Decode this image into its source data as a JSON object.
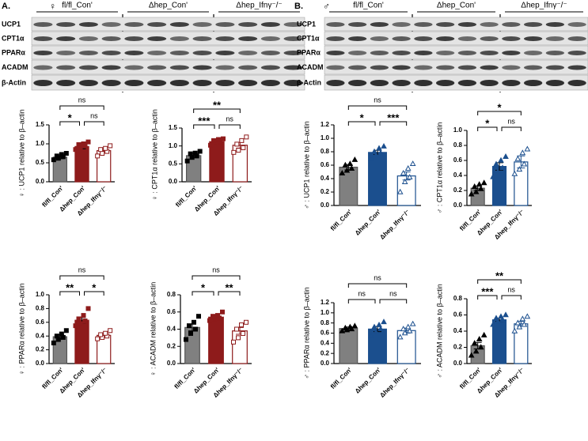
{
  "blots": [
    {
      "panel": "A.",
      "sex": "♀",
      "groups": [
        "fl/fl_Con'",
        "Δhep_Con'",
        "Δhep_Ifnγ⁻/⁻"
      ],
      "proteins": [
        "UCP1",
        "CPT1α",
        "PPARα",
        "ACADM",
        "β-Actin"
      ]
    },
    {
      "panel": "B.",
      "sex": "♂",
      "groups": [
        "fl/fl_Con'",
        "Δhep_Con'",
        "Δhep_Ifnγ⁻/⁻"
      ],
      "proteins": [
        "UCP1",
        "CPT1α",
        "PPARα",
        "ACADM",
        "β-Actin"
      ]
    }
  ],
  "chart_data": [
    {
      "type": "bar",
      "ylabel": "♀ : UCP1 relative to β–actin",
      "categories": [
        "fl/fl_Con'",
        "Δhep_Con'",
        "Δhep_Ifnγ⁻/⁻"
      ],
      "values": [
        0.65,
        0.93,
        0.82
      ],
      "errors": [
        0.04,
        0.06,
        0.05
      ],
      "points": [
        [
          0.58,
          0.62,
          0.66,
          0.68,
          0.72,
          0.75
        ],
        [
          0.85,
          0.9,
          0.95,
          0.98,
          1.0,
          1.05
        ],
        [
          0.68,
          0.75,
          0.8,
          0.85,
          0.88,
          0.95
        ]
      ],
      "colors": [
        "#808080",
        "#8e1b1b",
        "#ffffff"
      ],
      "edgecolors": [
        "#555555",
        "#8e1b1b",
        "#8e1b1b"
      ],
      "pointcolors": [
        "#000000",
        "#8e1b1b",
        "#8e1b1b"
      ],
      "marker": "square",
      "ylim": [
        0,
        1.5
      ],
      "yticks": [
        {
          "value": 0,
          "label": "0.0"
        },
        0.5,
        {
          "value": 1,
          "label": "1.0"
        },
        1.5
      ],
      "annotations": [
        "*",
        "ns",
        "ns"
      ]
    },
    {
      "type": "bar",
      "ylabel": "♀ : CPT1α relative to β–actin",
      "categories": [
        "fl/fl_Con'",
        "Δhep_Con'",
        "Δhep_Ifnγ⁻/⁻"
      ],
      "values": [
        0.73,
        1.12,
        1.02
      ],
      "errors": [
        0.05,
        0.04,
        0.08
      ],
      "points": [
        [
          0.58,
          0.68,
          0.72,
          0.78,
          0.8,
          0.85
        ],
        [
          1.02,
          1.1,
          1.12,
          1.15,
          1.18,
          1.2
        ],
        [
          0.82,
          0.88,
          0.95,
          1.05,
          1.15,
          1.25
        ]
      ],
      "colors": [
        "#808080",
        "#8e1b1b",
        "#ffffff"
      ],
      "edgecolors": [
        "#555555",
        "#8e1b1b",
        "#8e1b1b"
      ],
      "pointcolors": [
        "#000000",
        "#8e1b1b",
        "#8e1b1b"
      ],
      "marker": "square",
      "ylim": [
        0,
        1.5
      ],
      "yticks": [
        {
          "value": 0,
          "label": "0.0"
        },
        0.5,
        {
          "value": 1,
          "label": "1.0"
        },
        1.5
      ],
      "annotations": [
        "***",
        "ns",
        "**"
      ]
    },
    {
      "type": "bar",
      "ylabel": "♂ : UCP1 relative to β–actin",
      "categories": [
        "fl/fl_Con'",
        "Δhep_Con'",
        "Δhep_Ifnγ⁻/⁻"
      ],
      "values": [
        0.57,
        0.79,
        0.44
      ],
      "errors": [
        0.04,
        0.03,
        0.06
      ],
      "points": [
        [
          0.48,
          0.52,
          0.55,
          0.6,
          0.62,
          0.68
        ],
        [
          0.7,
          0.75,
          0.78,
          0.8,
          0.85,
          0.88
        ],
        [
          0.2,
          0.35,
          0.42,
          0.48,
          0.55,
          0.62
        ]
      ],
      "colors": [
        "#808080",
        "#1b4f8e",
        "#ffffff"
      ],
      "edgecolors": [
        "#555555",
        "#1b4f8e",
        "#1b4f8e"
      ],
      "pointcolors": [
        "#000000",
        "#1b4f8e",
        "#1b4f8e"
      ],
      "marker": "triangle",
      "ylim": [
        0,
        1.2
      ],
      "yticks": [
        {
          "value": 0,
          "label": "0.0"
        },
        0.2,
        0.4,
        0.6,
        0.8,
        {
          "value": 1,
          "label": "1.0"
        },
        1.2
      ],
      "annotations": [
        "*",
        "***",
        "ns"
      ]
    },
    {
      "type": "bar",
      "ylabel": "♂ : CPT1α relative to β–actin",
      "categories": [
        "fl/fl_Con'",
        "Δhep_Con'",
        "Δhep_Ifnγ⁻/⁻"
      ],
      "values": [
        0.23,
        0.52,
        0.58
      ],
      "errors": [
        0.03,
        0.05,
        0.08
      ],
      "points": [
        [
          0.15,
          0.18,
          0.22,
          0.25,
          0.28,
          0.3
        ],
        [
          0.38,
          0.45,
          0.5,
          0.55,
          0.6,
          0.65
        ],
        [
          0.42,
          0.48,
          0.55,
          0.62,
          0.7,
          0.75
        ]
      ],
      "colors": [
        "#808080",
        "#1b4f8e",
        "#ffffff"
      ],
      "edgecolors": [
        "#555555",
        "#1b4f8e",
        "#1b4f8e"
      ],
      "pointcolors": [
        "#000000",
        "#1b4f8e",
        "#1b4f8e"
      ],
      "marker": "triangle",
      "ylim": [
        0,
        1.0
      ],
      "yticks": [
        {
          "value": 0,
          "label": "0.0"
        },
        0.2,
        0.4,
        0.6,
        0.8,
        {
          "value": 1,
          "label": "1.0"
        }
      ],
      "annotations": [
        "*",
        "ns",
        "*"
      ]
    },
    {
      "type": "bar",
      "ylabel": "♀ : PPARα relative to β–actin",
      "categories": [
        "fl/fl_Con'",
        "Δhep_Con'",
        "Δhep_Ifnγ⁻/⁻"
      ],
      "values": [
        0.39,
        0.63,
        0.41
      ],
      "errors": [
        0.03,
        0.04,
        0.02
      ],
      "points": [
        [
          0.3,
          0.35,
          0.38,
          0.4,
          0.43,
          0.48
        ],
        [
          0.55,
          0.58,
          0.62,
          0.65,
          0.7,
          0.8
        ],
        [
          0.36,
          0.38,
          0.4,
          0.42,
          0.44,
          0.48
        ]
      ],
      "colors": [
        "#808080",
        "#8e1b1b",
        "#ffffff"
      ],
      "edgecolors": [
        "#555555",
        "#8e1b1b",
        "#8e1b1b"
      ],
      "pointcolors": [
        "#000000",
        "#8e1b1b",
        "#8e1b1b"
      ],
      "marker": "square",
      "ylim": [
        0,
        1.0
      ],
      "yticks": [
        {
          "value": 0,
          "label": "0.0"
        },
        0.2,
        0.4,
        0.6,
        0.8,
        {
          "value": 1,
          "label": "1.0"
        }
      ],
      "annotations": [
        "**",
        "*",
        "ns"
      ]
    },
    {
      "type": "bar",
      "ylabel": "♀ : ACADM relative to β–actin",
      "categories": [
        "fl/fl_Con'",
        "Δhep_Con'",
        "Δhep_Ifnγ⁻/⁻"
      ],
      "values": [
        0.42,
        0.54,
        0.38
      ],
      "errors": [
        0.04,
        0.02,
        0.04
      ],
      "points": [
        [
          0.28,
          0.35,
          0.4,
          0.44,
          0.48,
          0.55
        ],
        [
          0.5,
          0.52,
          0.53,
          0.55,
          0.56,
          0.6
        ],
        [
          0.25,
          0.3,
          0.35,
          0.4,
          0.45,
          0.48
        ]
      ],
      "colors": [
        "#808080",
        "#8e1b1b",
        "#ffffff"
      ],
      "edgecolors": [
        "#555555",
        "#8e1b1b",
        "#8e1b1b"
      ],
      "pointcolors": [
        "#000000",
        "#8e1b1b",
        "#8e1b1b"
      ],
      "marker": "square",
      "ylim": [
        0,
        0.8
      ],
      "yticks": [
        {
          "value": 0,
          "label": "0.0"
        },
        0.2,
        0.4,
        0.6,
        0.8
      ],
      "annotations": [
        "*",
        "**",
        "ns"
      ]
    },
    {
      "type": "bar",
      "ylabel": "♂ : PPARα relative to β–actin",
      "categories": [
        "fl/fl_Con'",
        "Δhep_Con'",
        "Δhep_Ifnγ⁻/⁻"
      ],
      "values": [
        0.69,
        0.68,
        0.65
      ],
      "errors": [
        0.03,
        0.05,
        0.05
      ],
      "points": [
        [
          0.64,
          0.66,
          0.68,
          0.7,
          0.72,
          0.74
        ],
        [
          0.55,
          0.62,
          0.68,
          0.72,
          0.76,
          0.82
        ],
        [
          0.52,
          0.6,
          0.64,
          0.68,
          0.72,
          0.78
        ]
      ],
      "colors": [
        "#808080",
        "#1b4f8e",
        "#ffffff"
      ],
      "edgecolors": [
        "#555555",
        "#1b4f8e",
        "#1b4f8e"
      ],
      "pointcolors": [
        "#000000",
        "#1b4f8e",
        "#1b4f8e"
      ],
      "marker": "triangle",
      "ylim": [
        0,
        1.2
      ],
      "yticks": [
        {
          "value": 0,
          "label": "0.0"
        },
        0.2,
        0.4,
        0.6,
        0.8,
        {
          "value": 1,
          "label": "1.0"
        },
        1.2
      ],
      "annotations": [
        "ns",
        "ns",
        "ns"
      ]
    },
    {
      "type": "bar",
      "ylabel": "♂ : ACADM relative to β–actin",
      "categories": [
        "fl/fl_Con'",
        "Δhep_Con'",
        "Δhep_Ifnγ⁻/⁻"
      ],
      "values": [
        0.22,
        0.54,
        0.49
      ],
      "errors": [
        0.04,
        0.02,
        0.03
      ],
      "points": [
        [
          0.1,
          0.15,
          0.2,
          0.25,
          0.3,
          0.35
        ],
        [
          0.48,
          0.52,
          0.54,
          0.56,
          0.58,
          0.6
        ],
        [
          0.4,
          0.45,
          0.48,
          0.5,
          0.55,
          0.58
        ]
      ],
      "colors": [
        "#808080",
        "#1b4f8e",
        "#ffffff"
      ],
      "edgecolors": [
        "#555555",
        "#1b4f8e",
        "#1b4f8e"
      ],
      "pointcolors": [
        "#000000",
        "#1b4f8e",
        "#1b4f8e"
      ],
      "marker": "triangle",
      "ylim": [
        0,
        0.8
      ],
      "yticks": [
        {
          "value": 0,
          "label": "0.0"
        },
        0.2,
        0.4,
        0.6,
        0.8
      ],
      "annotations": [
        "***",
        "ns",
        "**"
      ]
    }
  ]
}
